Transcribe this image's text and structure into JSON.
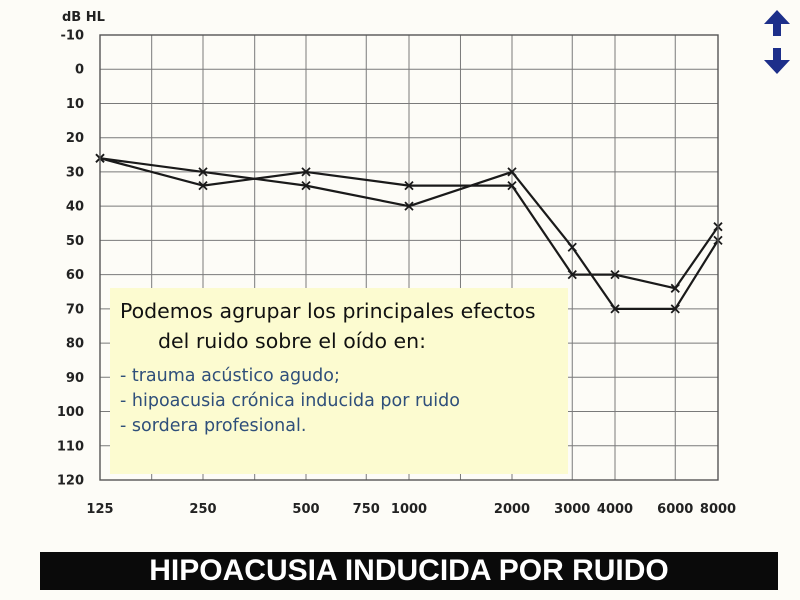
{
  "chart_data": {
    "type": "line",
    "ylabel": "dB HL",
    "y_inverted": true,
    "ylim": [
      -10,
      120
    ],
    "yticks": [
      "-10",
      "0",
      "10",
      "20",
      "30",
      "40",
      "50",
      "60",
      "70",
      "80",
      "90",
      "100",
      "110",
      "120"
    ],
    "x_scale": "log",
    "xticks": [
      "125",
      "250",
      "500",
      "750",
      "1000",
      "2000",
      "3000",
      "4000",
      "6000",
      "8000"
    ],
    "x_values": [
      125,
      250,
      500,
      750,
      1000,
      2000,
      3000,
      4000,
      6000,
      8000
    ],
    "grid": true,
    "series": [
      {
        "marker": "x",
        "color": "#1a1a1a",
        "x": [
          125,
          250,
          500,
          1000,
          2000,
          3000,
          4000,
          6000,
          8000
        ],
        "y": [
          26,
          34,
          30,
          34,
          34,
          60,
          60,
          64,
          46
        ]
      },
      {
        "marker": "x",
        "color": "#1a1a1a",
        "x": [
          125,
          250,
          500,
          1000,
          2000,
          3000,
          4000,
          6000,
          8000
        ],
        "y": [
          26,
          30,
          34,
          40,
          30,
          52,
          70,
          70,
          50
        ]
      }
    ]
  },
  "callout": {
    "intro": "Podemos agrupar los principales efectos del ruido sobre el oído en:",
    "items": [
      "- trauma acústico agudo;",
      "- hipoacusia crónica inducida por ruido",
      "- sordera profesional."
    ]
  },
  "banner": {
    "title": "HIPOACUSIA INDUCIDA POR RUIDO"
  },
  "nav": {
    "icon": "up-down-arrows-icon",
    "color": "#1d2f8a"
  }
}
